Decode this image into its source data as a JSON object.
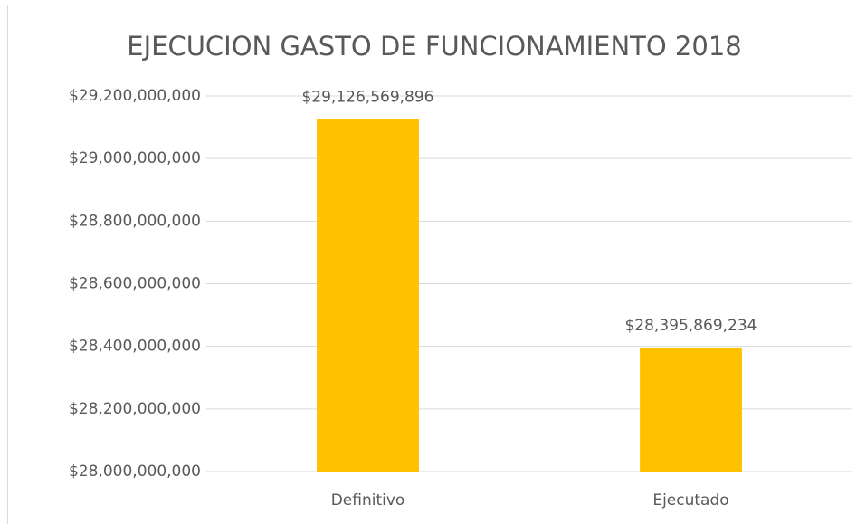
{
  "chart_data": {
    "type": "bar",
    "title": "EJECUCION GASTO DE FUNCIONAMIENTO 2018",
    "categories": [
      "Definitivo",
      "Ejecutado"
    ],
    "values": [
      29126569896,
      28395869234
    ],
    "value_labels": [
      "$29,126,569,896",
      "$28,395,869,234"
    ],
    "color": "#ffc000",
    "ylim": [
      28000000000,
      29200000000
    ],
    "yticks": [
      {
        "value": 28000000000,
        "label": "$28,000,000,000"
      },
      {
        "value": 28200000000,
        "label": "$28,200,000,000"
      },
      {
        "value": 28400000000,
        "label": "$28,400,000,000"
      },
      {
        "value": 28600000000,
        "label": "$28,600,000,000"
      },
      {
        "value": 28800000000,
        "label": "$28,800,000,000"
      },
      {
        "value": 29000000000,
        "label": "$29,000,000,000"
      },
      {
        "value": 29200000000,
        "label": "$29,200,000,000"
      }
    ],
    "grid": true
  }
}
